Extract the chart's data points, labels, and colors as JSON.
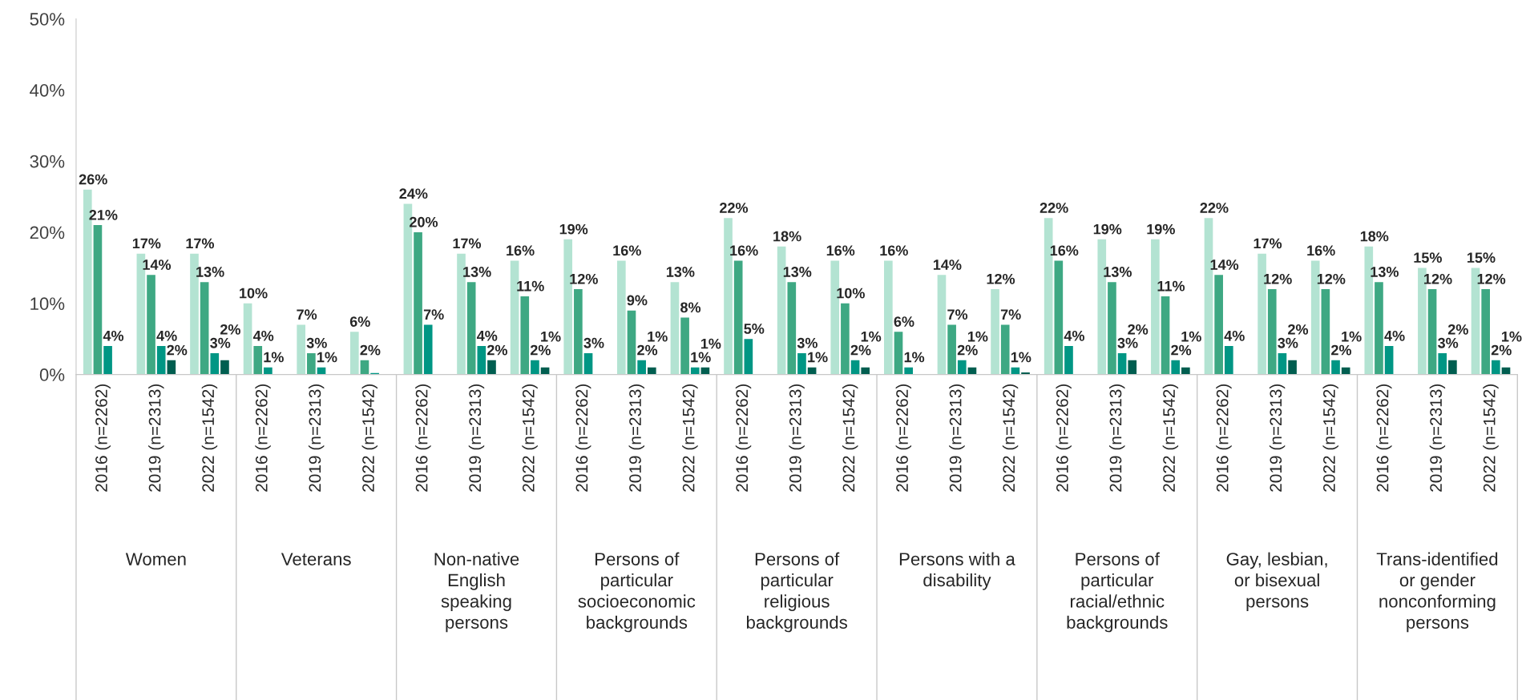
{
  "chart_data": {
    "type": "bar",
    "categories": [
      "2016 (n=2262)",
      "2019 (n=2313)",
      "2022 (n=1542)",
      "2016 (n=2262)",
      "2019 (n=2313)",
      "2022 (n=1542)",
      "2016 (n=2262)",
      "2019 (n=2313)",
      "2022 (n=1542)",
      "2016 (n=2262)",
      "2019 (n=2313)",
      "2022 (n=1542)",
      "2016 (n=2262)",
      "2019 (n=2313)",
      "2022 (n=1542)",
      "2016 (n=2262)",
      "2019 (n=2313)",
      "2022 (n=1542)",
      "2016 (n=2262)",
      "2019 (n=2313)",
      "2022 (n=1542)",
      "2016 (n=2262)",
      "2019 (n=2313)",
      "2022 (n=1542)",
      "2016 (n=2262)",
      "2019 (n=2313)",
      "2022 (n=1542)"
    ],
    "series": [
      {
        "color": "#b3e3d2",
        "values": [
          26,
          17,
          17,
          10,
          7,
          6,
          24,
          17,
          16,
          19,
          16,
          13,
          22,
          18,
          16,
          16,
          14,
          12,
          22,
          19,
          19,
          22,
          17,
          16,
          18,
          15,
          15
        ],
        "value_labels": [
          "26%",
          "17%",
          "17%",
          "10%",
          "7%",
          "6%",
          "24%",
          "17%",
          "16%",
          "19%",
          "16%",
          "13%",
          "22%",
          "18%",
          "16%",
          "16%",
          "14%",
          "12%",
          "22%",
          "19%",
          "19%",
          "22%",
          "17%",
          "16%",
          "18%",
          "15%",
          "15%"
        ]
      },
      {
        "color": "#3ea883",
        "values": [
          21,
          14,
          13,
          4,
          3,
          2,
          20,
          13,
          11,
          12,
          9,
          8,
          16,
          13,
          10,
          6,
          7,
          7,
          16,
          13,
          11,
          14,
          12,
          12,
          13,
          12,
          12
        ],
        "value_labels": [
          "21%",
          "14%",
          "13%",
          "4%",
          "3%",
          "2%",
          "20%",
          "13%",
          "11%",
          "12%",
          "9%",
          "8%",
          "16%",
          "13%",
          "10%",
          "6%",
          "7%",
          "7%",
          "16%",
          "13%",
          "11%",
          "14%",
          "12%",
          "12%",
          "13%",
          "12%",
          "12%"
        ]
      },
      {
        "color": "#009684",
        "values": [
          4,
          4,
          3,
          1,
          1,
          0.2,
          7,
          4,
          2,
          3,
          2,
          1,
          5,
          3,
          2,
          1,
          2,
          1,
          4,
          3,
          2,
          4,
          3,
          2,
          4,
          3,
          2
        ],
        "value_labels": [
          "4%",
          "4%",
          "3%",
          "1%",
          "1%",
          null,
          "7%",
          "4%",
          "2%",
          "3%",
          "2%",
          "1%",
          "5%",
          "3%",
          "2%",
          "1%",
          "2%",
          "1%",
          "4%",
          "3%",
          "2%",
          "4%",
          "3%",
          "2%",
          "4%",
          "3%",
          "2%"
        ]
      },
      {
        "color": "#005e50",
        "values": [
          null,
          2,
          2,
          null,
          null,
          null,
          null,
          2,
          1,
          null,
          1,
          1,
          null,
          1,
          1,
          null,
          1,
          0.3,
          null,
          2,
          1,
          null,
          2,
          1,
          null,
          2,
          1
        ],
        "value_labels": [
          null,
          "2%",
          "2%",
          null,
          null,
          null,
          null,
          "2%",
          "1%",
          null,
          "1%",
          "1%",
          null,
          "1%",
          "1%",
          null,
          "1%",
          null,
          null,
          "2%",
          "1%",
          null,
          "2%",
          "1%",
          null,
          "2%",
          "1%"
        ]
      }
    ],
    "ylim": [
      0,
      50
    ],
    "yticks": [
      {
        "value": 0,
        "label": "0%"
      },
      {
        "value": 10,
        "label": "10%"
      },
      {
        "value": 20,
        "label": "20%"
      },
      {
        "value": 30,
        "label": "30%"
      },
      {
        "value": 40,
        "label": "40%"
      },
      {
        "value": 50,
        "label": "50%"
      }
    ],
    "annotations": [
      "Women",
      "Veterans",
      "Non-native English speaking persons",
      "Persons of particular socioeconomic backgrounds",
      "Persons of particular religious backgrounds",
      "Persons with a disability",
      "Persons of particular racial/ethnic backgrounds",
      "Gay, lesbian, or bisexual persons",
      "Trans-identified or gender nonconforming persons"
    ],
    "grid": false,
    "legend": false
  }
}
